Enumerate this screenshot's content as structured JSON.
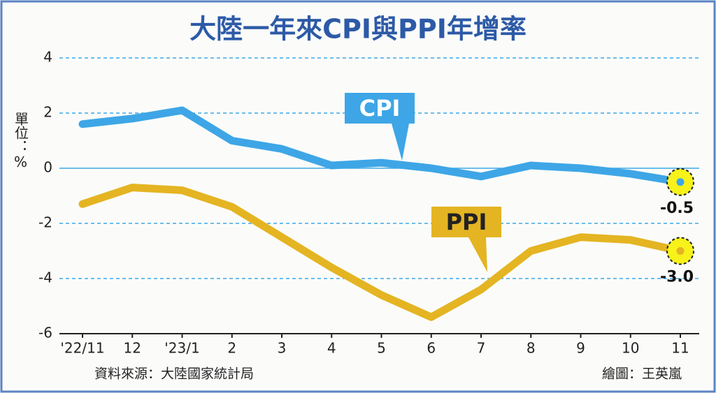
{
  "chart_data": {
    "type": "line",
    "title": "大陸一年來CPI與PPI年增率",
    "y_label": "單位：%",
    "source": "資料來源：大陸國家統計局",
    "credit": "繪圖：王英嵐",
    "categories": [
      "'22/11",
      "12",
      "'23/1",
      "2",
      "3",
      "4",
      "5",
      "6",
      "7",
      "8",
      "9",
      "10",
      "11"
    ],
    "series": [
      {
        "name": "CPI",
        "color": "#3ea6e6",
        "values": [
          1.6,
          1.8,
          2.1,
          1.0,
          0.7,
          0.1,
          0.2,
          0.0,
          -0.3,
          0.1,
          0.0,
          -0.2,
          -0.5
        ],
        "value_labels": [
          null,
          null,
          null,
          null,
          null,
          null,
          null,
          null,
          null,
          null,
          null,
          null,
          "-0.5"
        ]
      },
      {
        "name": "PPI",
        "color": "#e4b422",
        "values": [
          -1.3,
          -0.7,
          -0.8,
          -1.4,
          -2.5,
          -3.6,
          -4.6,
          -5.4,
          -4.4,
          -3.0,
          -2.5,
          -2.6,
          -3.0
        ],
        "value_labels": [
          null,
          null,
          null,
          null,
          null,
          null,
          null,
          null,
          null,
          null,
          null,
          null,
          "-3.0"
        ]
      }
    ],
    "ylim": [
      -6,
      4
    ],
    "yticks": [
      -6,
      -4,
      -2,
      0,
      2,
      4
    ],
    "grid": true
  }
}
